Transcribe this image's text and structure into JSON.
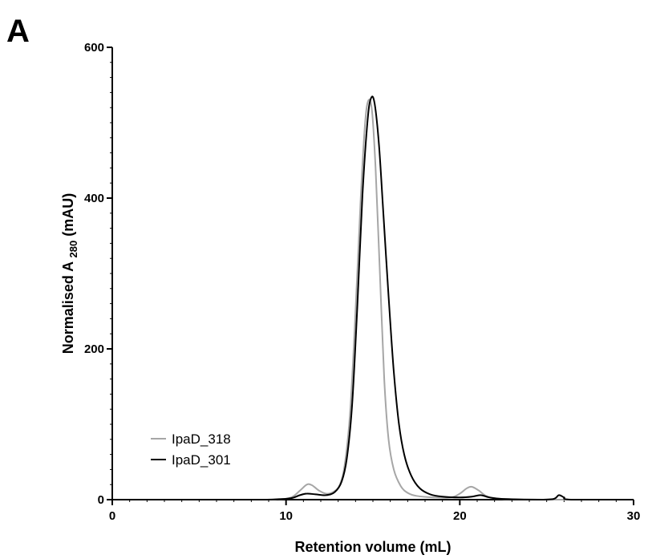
{
  "panel_label": "A",
  "chart_data": {
    "type": "line",
    "xlabel": "Retention volume (mL)",
    "ylabel_prefix": "Normalised A ",
    "ylabel_sub": "280",
    "ylabel_suffix": " (mAU)",
    "xlim": [
      0,
      30
    ],
    "ylim": [
      0,
      600
    ],
    "xticks": [
      0,
      10,
      20,
      30
    ],
    "xminor_step": 1,
    "yticks": [
      0,
      200,
      400,
      600
    ],
    "yminor_step": 20,
    "grid": false,
    "legend_placement": "lower-left",
    "series": [
      {
        "name": "IpaD_318",
        "color": "#a6a6a6",
        "points": [
          [
            0,
            0
          ],
          [
            8,
            0
          ],
          [
            9.5,
            0.5
          ],
          [
            10.3,
            3
          ],
          [
            10.8,
            12
          ],
          [
            11.2,
            20
          ],
          [
            11.5,
            19
          ],
          [
            11.9,
            12
          ],
          [
            12.3,
            8
          ],
          [
            12.7,
            10
          ],
          [
            13.1,
            20
          ],
          [
            13.4,
            50
          ],
          [
            13.7,
            120
          ],
          [
            14.0,
            250
          ],
          [
            14.3,
            400
          ],
          [
            14.55,
            500
          ],
          [
            14.75,
            530
          ],
          [
            14.95,
            515
          ],
          [
            15.15,
            440
          ],
          [
            15.4,
            300
          ],
          [
            15.65,
            160
          ],
          [
            15.9,
            80
          ],
          [
            16.2,
            40
          ],
          [
            16.6,
            18
          ],
          [
            17.0,
            9
          ],
          [
            17.5,
            5
          ],
          [
            18.5,
            3
          ],
          [
            19.5,
            3
          ],
          [
            20.0,
            8
          ],
          [
            20.4,
            15
          ],
          [
            20.7,
            17
          ],
          [
            21.1,
            12
          ],
          [
            21.6,
            4
          ],
          [
            22.5,
            1
          ],
          [
            25,
            0
          ],
          [
            26,
            0
          ],
          [
            30,
            0
          ]
        ]
      },
      {
        "name": "IpaD_301",
        "color": "#000000",
        "points": [
          [
            0,
            0
          ],
          [
            8,
            0
          ],
          [
            9.5,
            0.5
          ],
          [
            10.3,
            2
          ],
          [
            10.8,
            6
          ],
          [
            11.2,
            8
          ],
          [
            11.7,
            7
          ],
          [
            12.3,
            6
          ],
          [
            12.8,
            10
          ],
          [
            13.2,
            24
          ],
          [
            13.5,
            55
          ],
          [
            13.8,
            125
          ],
          [
            14.1,
            255
          ],
          [
            14.4,
            405
          ],
          [
            14.7,
            505
          ],
          [
            14.9,
            533
          ],
          [
            15.1,
            525
          ],
          [
            15.35,
            470
          ],
          [
            15.6,
            380
          ],
          [
            15.9,
            270
          ],
          [
            16.2,
            170
          ],
          [
            16.5,
            100
          ],
          [
            16.8,
            60
          ],
          [
            17.2,
            32
          ],
          [
            17.7,
            15
          ],
          [
            18.3,
            7
          ],
          [
            19.0,
            4
          ],
          [
            20.0,
            3
          ],
          [
            20.7,
            4
          ],
          [
            21.2,
            6
          ],
          [
            21.7,
            3
          ],
          [
            22.5,
            1
          ],
          [
            24.5,
            0
          ],
          [
            25.4,
            1
          ],
          [
            25.7,
            6
          ],
          [
            26.0,
            3
          ],
          [
            26.4,
            0
          ],
          [
            30,
            0
          ]
        ]
      }
    ]
  }
}
